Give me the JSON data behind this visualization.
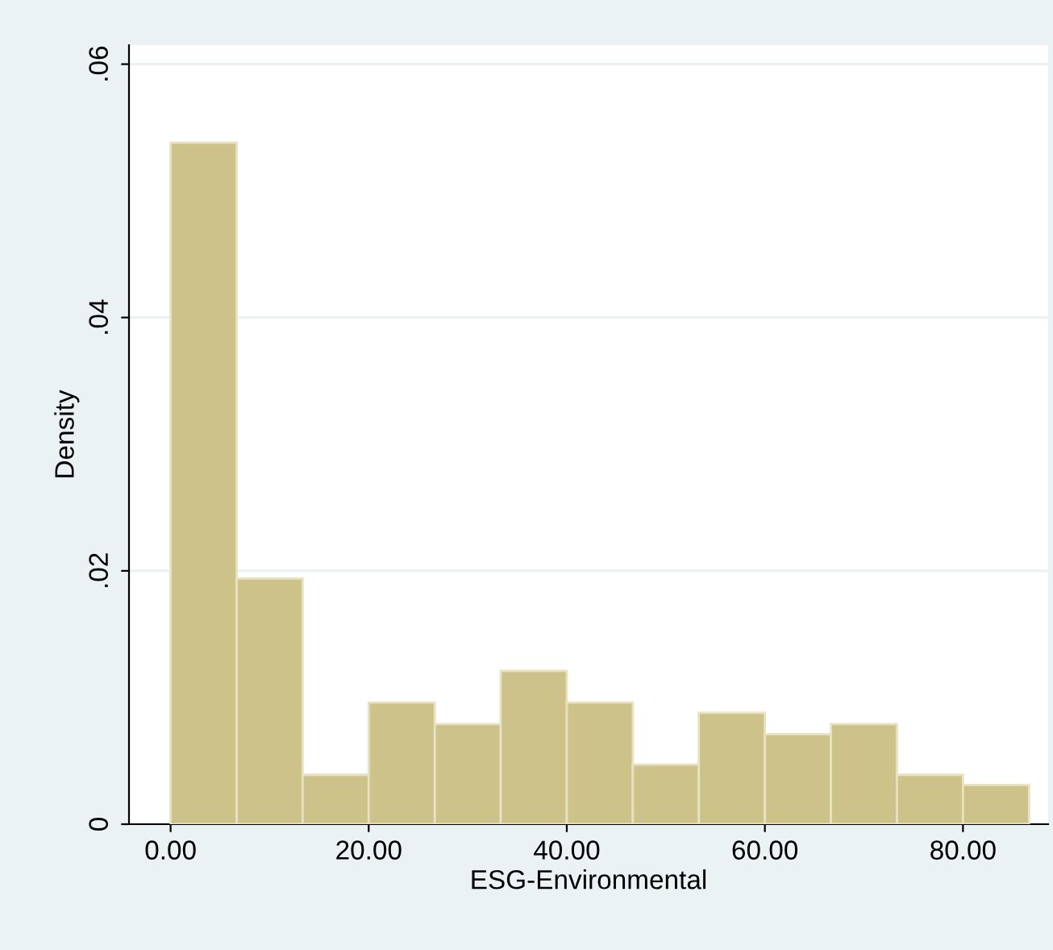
{
  "chart_data": {
    "type": "histogram",
    "xlabel": "ESG-Environmental",
    "ylabel": "Density",
    "bins": [
      0,
      6.67,
      13.33,
      20,
      26.67,
      33.33,
      40,
      46.67,
      53.33,
      60,
      66.67,
      73.33,
      80,
      86.67
    ],
    "values": [
      0.0538,
      0.0194,
      0.0039,
      0.0096,
      0.0079,
      0.0121,
      0.0096,
      0.0047,
      0.0088,
      0.0071,
      0.0079,
      0.0039,
      0.0031
    ],
    "color": "#cdc28a",
    "xlim": [
      -4.2,
      88.6
    ],
    "ylim": [
      0,
      0.0615
    ],
    "xticks": [
      {
        "value": 0,
        "label": "0.00"
      },
      {
        "value": 20,
        "label": "20.00"
      },
      {
        "value": 40,
        "label": "40.00"
      },
      {
        "value": 60,
        "label": "60.00"
      },
      {
        "value": 80,
        "label": "80.00"
      }
    ],
    "yticks": [
      {
        "value": 0,
        "label": "0"
      },
      {
        "value": 0.02,
        "label": ".02"
      },
      {
        "value": 0.04,
        "label": ".04"
      },
      {
        "value": 0.06,
        "label": ".06"
      }
    ],
    "grid": "y"
  }
}
